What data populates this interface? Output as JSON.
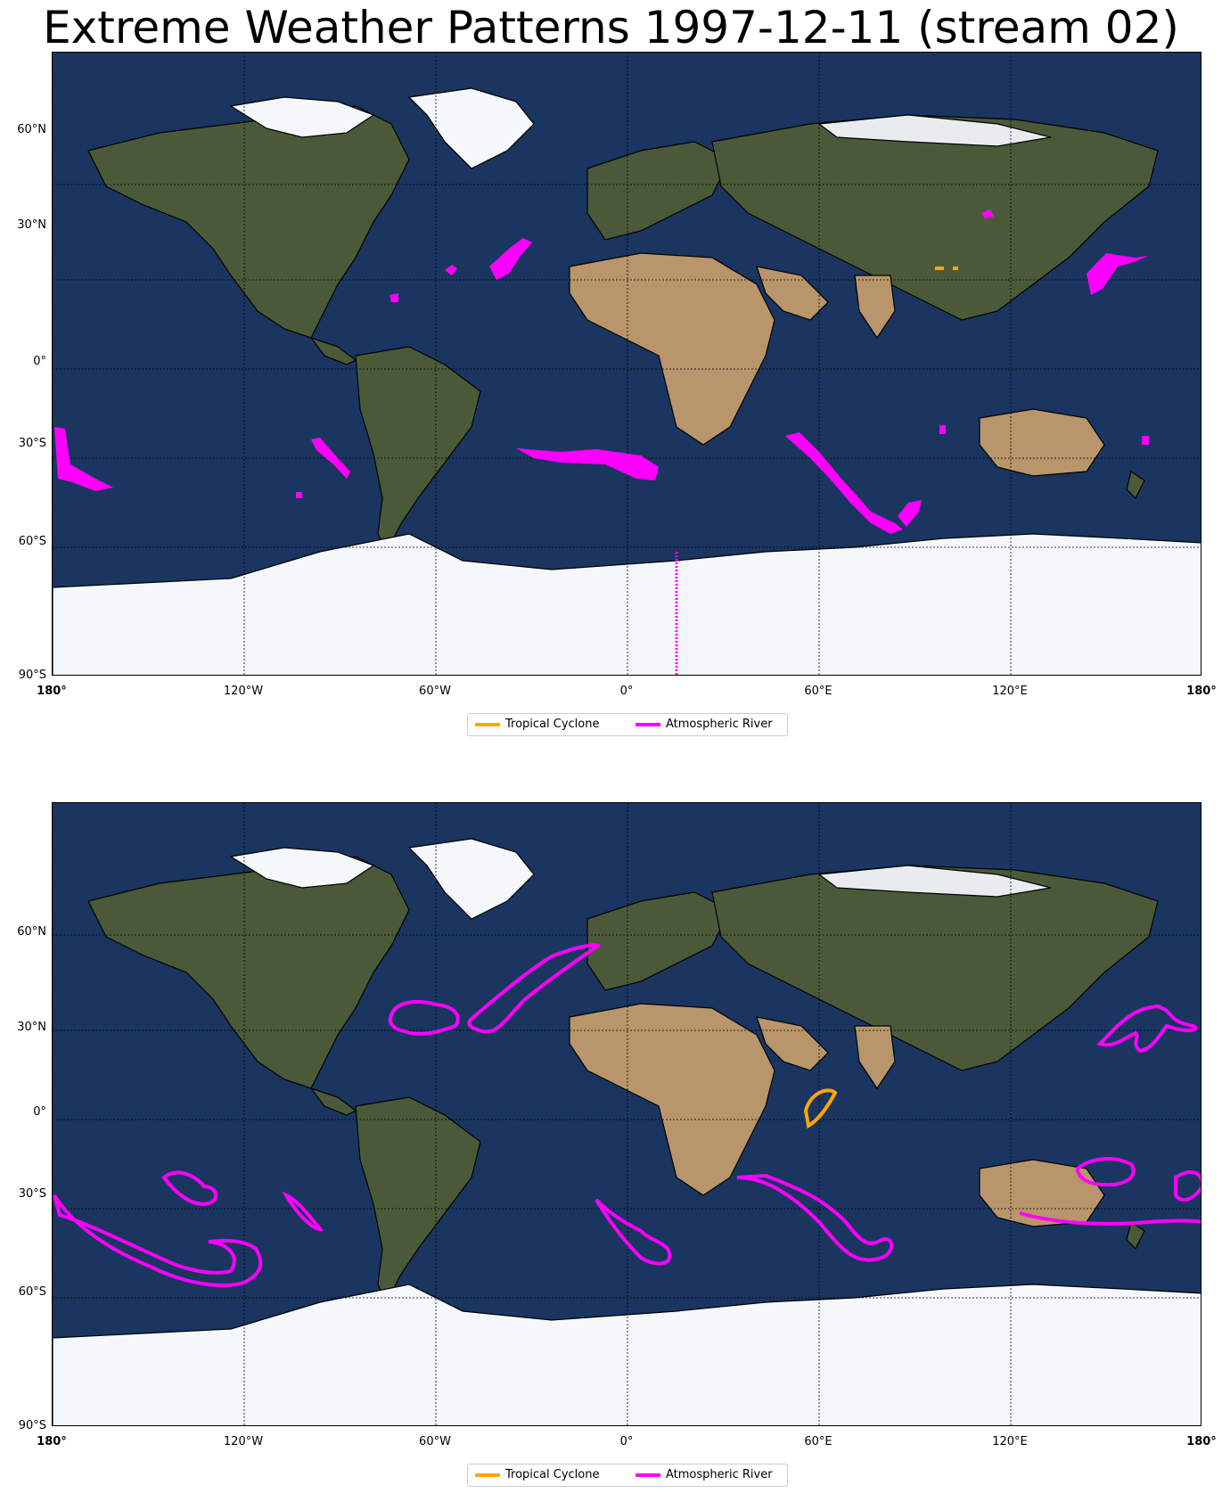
{
  "title": "Extreme Weather Patterns 1997-12-11 (stream 02)",
  "colors": {
    "tropical_cyclone": "#ffa500",
    "atmospheric_river": "#ff00ff",
    "ocean": "#1a3560",
    "land": "#4a5a38",
    "desert": "#b8956a",
    "ice": "#f4f8fa"
  },
  "lat_labels": [
    "60°N",
    "30°N",
    "0°",
    "30°S",
    "60°S",
    "90°S"
  ],
  "lon_labels": [
    "180°",
    "120°W",
    "60°W",
    "0°",
    "60°E",
    "120°E",
    "180°"
  ],
  "panels": [
    {
      "legend": {
        "tropical_cyclone_label": "Tropical Cyclone",
        "atmospheric_river_label": "Atmospheric River"
      }
    },
    {
      "legend": {
        "tropical_cyclone_label": "Tropical Cyclone",
        "atmospheric_river_label": "Atmospheric River"
      }
    }
  ]
}
